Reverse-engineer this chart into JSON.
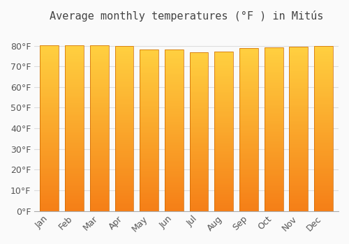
{
  "title": "Average monthly temperatures (°F ) in Mitús",
  "months": [
    "Jan",
    "Feb",
    "Mar",
    "Apr",
    "May",
    "Jun",
    "Jul",
    "Aug",
    "Sep",
    "Oct",
    "Nov",
    "Dec"
  ],
  "values": [
    80.1,
    80.1,
    80.1,
    79.9,
    78.3,
    78.1,
    76.8,
    77.0,
    78.8,
    79.3,
    79.5,
    80.0
  ],
  "bar_color_top": "#FDD835",
  "bar_color_bottom": "#F57F17",
  "bar_edge_color": "#E65100",
  "ylim": [
    0,
    88
  ],
  "yticks": [
    0,
    10,
    20,
    30,
    40,
    50,
    60,
    70,
    80
  ],
  "background_color": "#FAFAFA",
  "grid_color": "#DDDDDD",
  "title_fontsize": 11,
  "tick_fontsize": 9
}
